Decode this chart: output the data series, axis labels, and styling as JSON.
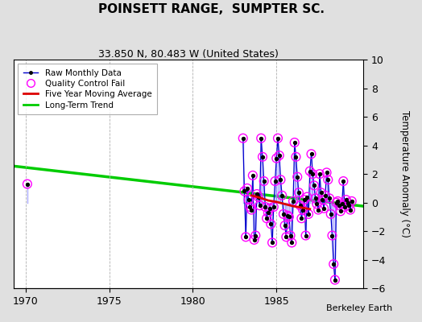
{
  "title": "POINSETT RANGE,  SUMPTER SC.",
  "subtitle": "33.850 N, 80.483 W (United States)",
  "ylabel": "Temperature Anomaly (°C)",
  "attribution": "Berkeley Earth",
  "xlim": [
    1969.3,
    1990.2
  ],
  "ylim": [
    -6,
    10
  ],
  "yticks": [
    -6,
    -4,
    -2,
    0,
    2,
    4,
    6,
    8,
    10
  ],
  "xticks": [
    1970,
    1975,
    1980,
    1985
  ],
  "bg_color": "#e0e0e0",
  "plot_bg_color": "#ffffff",
  "grid_color": "#b0b0b0",
  "raw_data": [
    [
      1970.1,
      1.3
    ],
    [
      1983.0,
      4.5
    ],
    [
      1983.083,
      0.8
    ],
    [
      1983.167,
      -2.4
    ],
    [
      1983.25,
      1.0
    ],
    [
      1983.333,
      0.2
    ],
    [
      1983.417,
      -0.3
    ],
    [
      1983.5,
      -0.5
    ],
    [
      1983.583,
      1.9
    ],
    [
      1983.667,
      -2.6
    ],
    [
      1983.75,
      -2.3
    ],
    [
      1983.833,
      0.6
    ],
    [
      1983.917,
      0.4
    ],
    [
      1984.0,
      -0.2
    ],
    [
      1984.083,
      4.5
    ],
    [
      1984.167,
      3.2
    ],
    [
      1984.25,
      1.5
    ],
    [
      1984.333,
      -0.3
    ],
    [
      1984.417,
      -1.1
    ],
    [
      1984.5,
      -0.7
    ],
    [
      1984.583,
      -0.4
    ],
    [
      1984.667,
      -1.5
    ],
    [
      1984.75,
      -2.8
    ],
    [
      1984.833,
      -0.3
    ],
    [
      1984.917,
      1.5
    ],
    [
      1985.0,
      3.1
    ],
    [
      1985.083,
      4.5
    ],
    [
      1985.167,
      3.3
    ],
    [
      1985.25,
      1.6
    ],
    [
      1985.333,
      0.5
    ],
    [
      1985.417,
      -0.8
    ],
    [
      1985.5,
      -1.6
    ],
    [
      1985.583,
      -2.4
    ],
    [
      1985.667,
      -0.9
    ],
    [
      1985.75,
      -1.0
    ],
    [
      1985.833,
      -2.3
    ],
    [
      1985.917,
      -2.8
    ],
    [
      1986.0,
      0.1
    ],
    [
      1986.083,
      4.2
    ],
    [
      1986.167,
      3.2
    ],
    [
      1986.25,
      1.8
    ],
    [
      1986.333,
      0.7
    ],
    [
      1986.417,
      -0.2
    ],
    [
      1986.5,
      -1.1
    ],
    [
      1986.583,
      -0.5
    ],
    [
      1986.667,
      0.2
    ],
    [
      1986.75,
      -2.3
    ],
    [
      1986.833,
      0.4
    ],
    [
      1986.917,
      -0.8
    ],
    [
      1987.0,
      2.2
    ],
    [
      1987.083,
      3.4
    ],
    [
      1987.167,
      2.0
    ],
    [
      1987.25,
      1.2
    ],
    [
      1987.333,
      0.3
    ],
    [
      1987.417,
      -0.1
    ],
    [
      1987.5,
      -0.5
    ],
    [
      1987.583,
      2.0
    ],
    [
      1987.667,
      0.7
    ],
    [
      1987.75,
      0.2
    ],
    [
      1987.833,
      -0.4
    ],
    [
      1987.917,
      0.5
    ],
    [
      1988.0,
      2.1
    ],
    [
      1988.083,
      1.6
    ],
    [
      1988.167,
      0.3
    ],
    [
      1988.25,
      -0.8
    ],
    [
      1988.333,
      -2.3
    ],
    [
      1988.417,
      -4.3
    ],
    [
      1988.5,
      -5.4
    ],
    [
      1988.583,
      0.0
    ],
    [
      1988.667,
      0.1
    ],
    [
      1988.75,
      -0.2
    ],
    [
      1988.833,
      -0.6
    ],
    [
      1988.917,
      -0.1
    ],
    [
      1989.0,
      1.5
    ],
    [
      1989.083,
      -0.3
    ],
    [
      1989.167,
      0.2
    ],
    [
      1989.25,
      0.0
    ],
    [
      1989.333,
      -0.2
    ],
    [
      1989.417,
      -0.5
    ],
    [
      1989.5,
      0.1
    ]
  ],
  "qc_all": true,
  "moving_avg": [
    [
      1983.5,
      0.5
    ],
    [
      1984.0,
      0.35
    ],
    [
      1984.5,
      0.15
    ],
    [
      1985.0,
      0.05
    ],
    [
      1985.5,
      -0.1
    ],
    [
      1986.0,
      -0.25
    ],
    [
      1986.5,
      -0.35
    ],
    [
      1987.0,
      -0.45
    ]
  ],
  "trend_x": [
    1969.3,
    1990.2
  ],
  "trend_y": [
    2.55,
    -0.25
  ],
  "raw_color": "#0000cc",
  "raw_color_alpha": "#8888ff",
  "qc_color": "#ff00ff",
  "moving_avg_color": "#dd0000",
  "trend_color": "#00cc00"
}
